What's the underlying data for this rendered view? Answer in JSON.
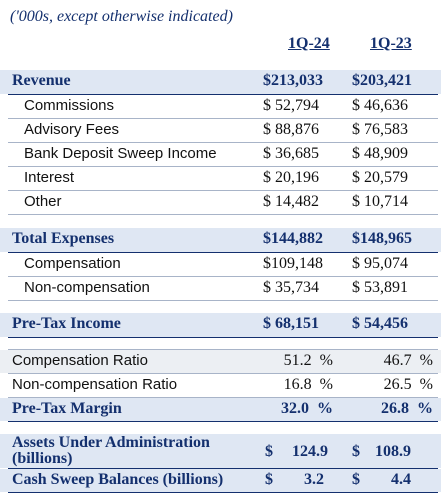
{
  "note": "('000s, except otherwise indicated)",
  "columns": [
    "1Q-24",
    "1Q-23"
  ],
  "revenue": {
    "label": "Revenue",
    "values": [
      "$213,033",
      "$203,421"
    ],
    "items": [
      {
        "label": "Commissions",
        "values": [
          "$ 52,794",
          "$ 46,636"
        ]
      },
      {
        "label": "Advisory Fees",
        "values": [
          "$ 88,876",
          "$ 76,583"
        ]
      },
      {
        "label": "Bank Deposit Sweep Income",
        "values": [
          "$ 36,685",
          "$ 48,909"
        ]
      },
      {
        "label": "Interest",
        "values": [
          "$ 20,196",
          "$ 20,579"
        ]
      },
      {
        "label": "Other",
        "values": [
          "$ 14,482",
          "$ 10,714"
        ]
      }
    ]
  },
  "expenses": {
    "label": "Total Expenses",
    "values": [
      "$144,882",
      "$148,965"
    ],
    "items": [
      {
        "label": "Compensation",
        "values": [
          "$109,148",
          "$ 95,074"
        ]
      },
      {
        "label": "Non-compensation",
        "values": [
          "$ 35,734",
          "$ 53,891"
        ]
      }
    ]
  },
  "pretax": {
    "label": "Pre-Tax Income",
    "values": [
      "$ 68,151",
      "$ 54,456"
    ]
  },
  "ratios": [
    {
      "label": "Compensation Ratio",
      "values": [
        "51.2",
        "46.7"
      ],
      "unit": "%"
    },
    {
      "label": "Non-compensation Ratio",
      "values": [
        "16.8",
        "26.5"
      ],
      "unit": "%"
    },
    {
      "label": "Pre-Tax Margin",
      "values": [
        "32.0",
        "26.8"
      ],
      "unit": "%"
    }
  ],
  "aua": {
    "label_line1": "Assets Under Administration",
    "label_line2": "(billions)",
    "currency": "$",
    "values": [
      "124.9",
      "108.9"
    ]
  },
  "cash_sweep": {
    "label": "Cash Sweep Balances (billions)",
    "currency": "$",
    "values": [
      "3.2",
      "4.4"
    ]
  }
}
